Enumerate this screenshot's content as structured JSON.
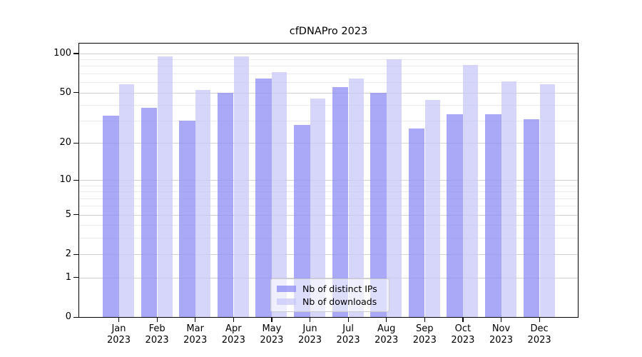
{
  "title": "cfDNAPro 2023",
  "chart_data": {
    "type": "bar",
    "title": "cfDNAPro 2023",
    "categories": [
      "Jan",
      "Feb",
      "Mar",
      "Apr",
      "May",
      "Jun",
      "Jul",
      "Aug",
      "Sep",
      "Oct",
      "Nov",
      "Dec"
    ],
    "year_label": "2023",
    "series": [
      {
        "name": "Nb of distinct IPs",
        "color": "#a9a9f8",
        "color_rgba": "rgba(140,140,245,0.75)",
        "values": [
          33,
          38,
          30,
          50,
          64,
          28,
          55,
          50,
          26,
          34,
          34,
          31
        ]
      },
      {
        "name": "Nb of downloads",
        "color": "#d7d7fa",
        "color_rgba": "rgba(200,200,248,0.75)",
        "values": [
          58,
          95,
          52,
          95,
          72,
          45,
          64,
          90,
          44,
          82,
          61,
          58
        ]
      }
    ],
    "xlabel": "",
    "ylabel": "",
    "yscale": "log1p",
    "ylim": [
      0,
      119
    ],
    "yticks_major": [
      0,
      1,
      2,
      5,
      10,
      20,
      50,
      100
    ],
    "yticks_minor": [
      3,
      4,
      6,
      7,
      8,
      9,
      30,
      40,
      60,
      70,
      80,
      90
    ],
    "grid": true,
    "legend_position": "lower center"
  }
}
